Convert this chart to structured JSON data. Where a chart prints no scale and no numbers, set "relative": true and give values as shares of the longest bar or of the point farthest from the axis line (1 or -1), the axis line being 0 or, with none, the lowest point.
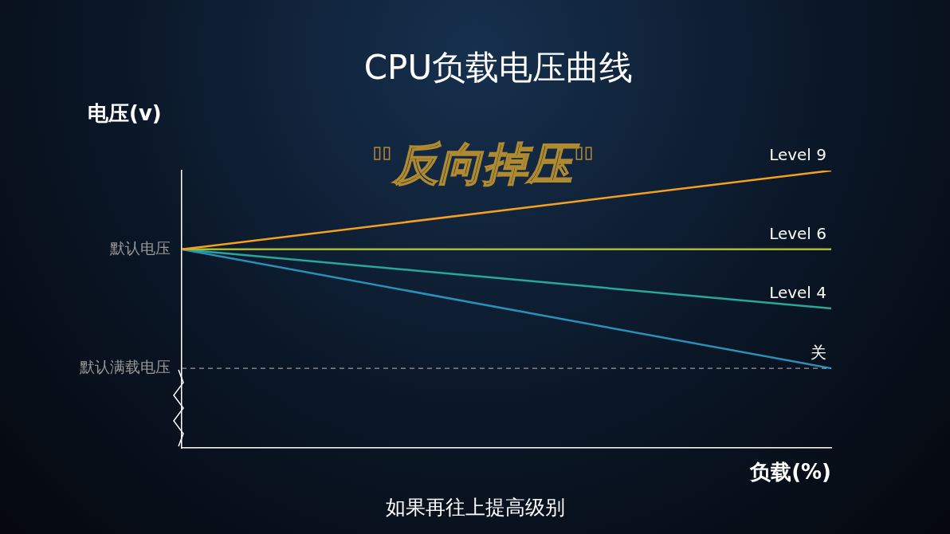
{
  "chart_data": {
    "type": "line",
    "title": "CPU负载电压曲线",
    "xlabel": "负载(%)",
    "ylabel": "电压(v)",
    "relative": true,
    "categories": [
      null,
      null
    ],
    "legend": false,
    "grid": false,
    "marker": "none",
    "line_style": "solid",
    "series": [
      {
        "name": "Level 9",
        "color": "#f5a020",
        "values": [
          0.716,
          1
        ]
      },
      {
        "name": "Level 6",
        "color": "#a8b838",
        "values": [
          0.716,
          0.716
        ]
      },
      {
        "name": "Level 4",
        "color": "#28a898",
        "values": [
          0.716,
          0.503
        ]
      },
      {
        "name": "关",
        "color": "#2a90b8",
        "values": [
          0.716,
          0.287
        ]
      }
    ],
    "ref_lines": [
      {
        "axis": "y",
        "value": 0.287,
        "label": "默认满载电压",
        "color": "#bbbbbb",
        "line_style": "dashed"
      }
    ],
    "annotations": [
      "默认电压",
      "\"反向掉压\"",
      "如果再往上提高级别"
    ]
  }
}
